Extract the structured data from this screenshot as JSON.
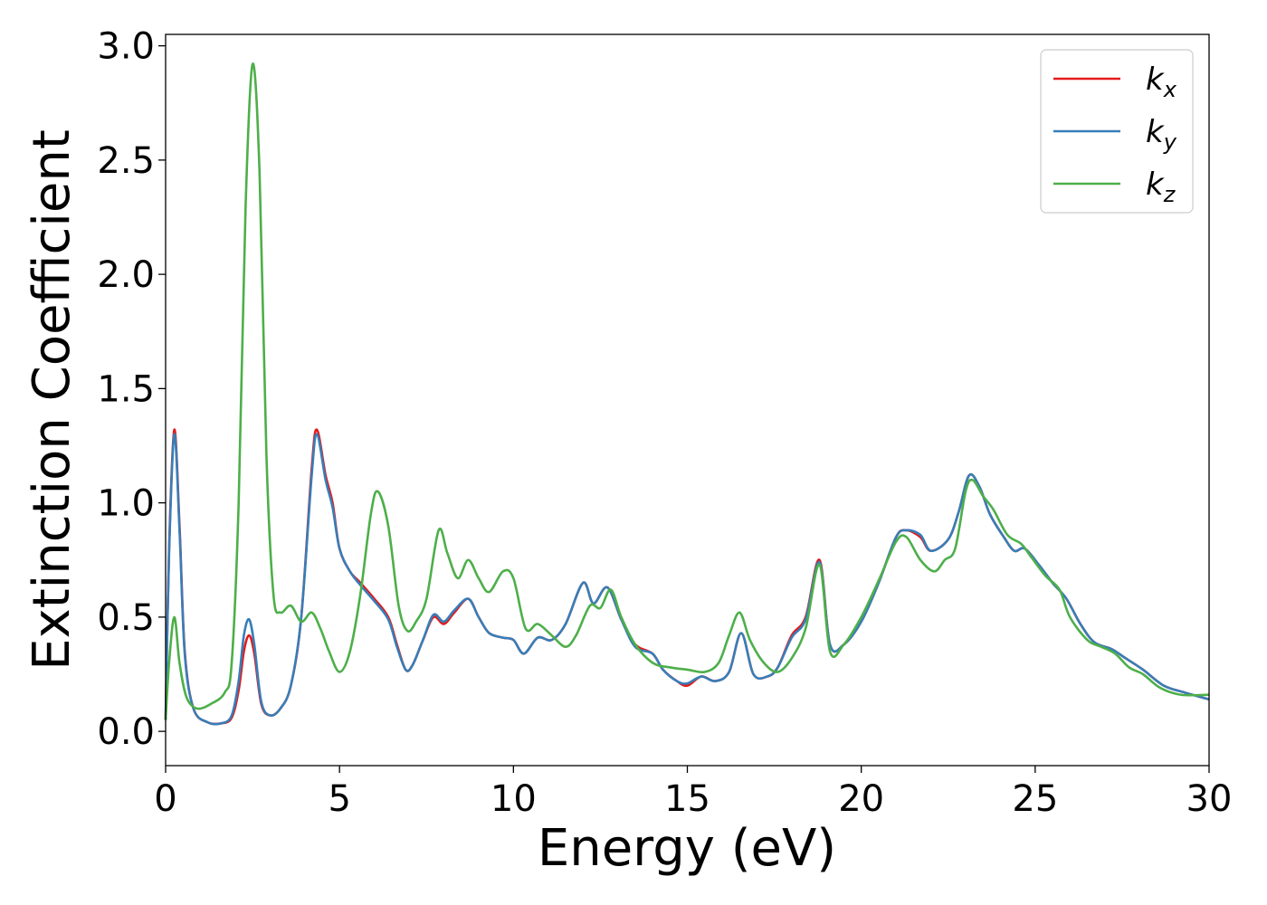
{
  "chart_data": {
    "type": "line",
    "title": "",
    "xlabel": "Energy (eV)",
    "ylabel": "Extinction Coefficient",
    "xlim": [
      0,
      30
    ],
    "ylim": [
      -0.15,
      3.05
    ],
    "xticks": [
      0,
      5,
      10,
      15,
      20,
      25,
      30
    ],
    "yticks": [
      0.0,
      0.5,
      1.0,
      1.5,
      2.0,
      2.5,
      3.0
    ],
    "xtick_labels": [
      "0",
      "5",
      "10",
      "15",
      "20",
      "25",
      "30"
    ],
    "ytick_labels": [
      "0.0",
      "0.5",
      "1.0",
      "1.5",
      "2.0",
      "2.5",
      "3.0"
    ],
    "grid": false,
    "legend_position": "top-right",
    "series": [
      {
        "name": "k_x",
        "legend_base": "k",
        "legend_sub": "x",
        "color": "#e41a1c",
        "points": [
          [
            0,
            0.05
          ],
          [
            0.1,
            0.8
          ],
          [
            0.25,
            1.32
          ],
          [
            0.4,
            0.9
          ],
          [
            0.55,
            0.35
          ],
          [
            0.8,
            0.1
          ],
          [
            1.2,
            0.04
          ],
          [
            1.6,
            0.035
          ],
          [
            1.9,
            0.06
          ],
          [
            2.1,
            0.18
          ],
          [
            2.25,
            0.35
          ],
          [
            2.4,
            0.42
          ],
          [
            2.55,
            0.34
          ],
          [
            2.75,
            0.12
          ],
          [
            3.0,
            0.07
          ],
          [
            3.3,
            0.1
          ],
          [
            3.6,
            0.2
          ],
          [
            3.9,
            0.5
          ],
          [
            4.2,
            1.15
          ],
          [
            4.35,
            1.32
          ],
          [
            4.6,
            1.12
          ],
          [
            4.8,
            1.0
          ],
          [
            5.0,
            0.8
          ],
          [
            5.3,
            0.7
          ],
          [
            5.6,
            0.65
          ],
          [
            6.0,
            0.58
          ],
          [
            6.4,
            0.5
          ],
          [
            6.65,
            0.38
          ],
          [
            6.9,
            0.27
          ],
          [
            7.1,
            0.29
          ],
          [
            7.4,
            0.4
          ],
          [
            7.7,
            0.5
          ],
          [
            8.0,
            0.47
          ],
          [
            8.3,
            0.52
          ],
          [
            8.7,
            0.58
          ],
          [
            9.0,
            0.5
          ],
          [
            9.3,
            0.43
          ],
          [
            9.7,
            0.41
          ],
          [
            10.0,
            0.4
          ],
          [
            10.3,
            0.34
          ],
          [
            10.7,
            0.41
          ],
          [
            11.1,
            0.4
          ],
          [
            11.5,
            0.47
          ],
          [
            12.0,
            0.65
          ],
          [
            12.3,
            0.56
          ],
          [
            12.7,
            0.63
          ],
          [
            13.1,
            0.49
          ],
          [
            13.5,
            0.38
          ],
          [
            14.0,
            0.34
          ],
          [
            14.3,
            0.27
          ],
          [
            14.7,
            0.22
          ],
          [
            15.0,
            0.2
          ],
          [
            15.4,
            0.24
          ],
          [
            15.8,
            0.22
          ],
          [
            16.2,
            0.26
          ],
          [
            16.55,
            0.43
          ],
          [
            16.9,
            0.25
          ],
          [
            17.3,
            0.24
          ],
          [
            17.6,
            0.28
          ],
          [
            18.0,
            0.42
          ],
          [
            18.4,
            0.5
          ],
          [
            18.8,
            0.75
          ],
          [
            19.1,
            0.38
          ],
          [
            19.5,
            0.38
          ],
          [
            20.0,
            0.48
          ],
          [
            20.5,
            0.65
          ],
          [
            21.0,
            0.85
          ],
          [
            21.3,
            0.88
          ],
          [
            21.7,
            0.85
          ],
          [
            22.0,
            0.79
          ],
          [
            22.5,
            0.84
          ],
          [
            22.8,
            0.96
          ],
          [
            23.1,
            1.12
          ],
          [
            23.4,
            1.07
          ],
          [
            23.7,
            0.95
          ],
          [
            24.1,
            0.85
          ],
          [
            24.4,
            0.79
          ],
          [
            24.7,
            0.8
          ],
          [
            25.1,
            0.73
          ],
          [
            25.5,
            0.65
          ],
          [
            25.9,
            0.58
          ],
          [
            26.3,
            0.47
          ],
          [
            26.7,
            0.39
          ],
          [
            27.2,
            0.36
          ],
          [
            27.6,
            0.32
          ],
          [
            28.1,
            0.27
          ],
          [
            28.7,
            0.2
          ],
          [
            29.3,
            0.17
          ],
          [
            30.0,
            0.14
          ]
        ]
      },
      {
        "name": "k_y",
        "legend_base": "k",
        "legend_sub": "y",
        "color": "#377eb8",
        "points": [
          [
            0,
            0.05
          ],
          [
            0.1,
            0.78
          ],
          [
            0.25,
            1.3
          ],
          [
            0.4,
            0.88
          ],
          [
            0.55,
            0.34
          ],
          [
            0.8,
            0.1
          ],
          [
            1.2,
            0.04
          ],
          [
            1.6,
            0.035
          ],
          [
            1.9,
            0.07
          ],
          [
            2.1,
            0.22
          ],
          [
            2.25,
            0.42
          ],
          [
            2.4,
            0.49
          ],
          [
            2.55,
            0.38
          ],
          [
            2.75,
            0.13
          ],
          [
            3.0,
            0.07
          ],
          [
            3.3,
            0.1
          ],
          [
            3.6,
            0.2
          ],
          [
            3.9,
            0.5
          ],
          [
            4.2,
            1.12
          ],
          [
            4.35,
            1.3
          ],
          [
            4.6,
            1.1
          ],
          [
            4.8,
            0.98
          ],
          [
            5.0,
            0.8
          ],
          [
            5.3,
            0.7
          ],
          [
            5.6,
            0.64
          ],
          [
            6.0,
            0.57
          ],
          [
            6.4,
            0.49
          ],
          [
            6.65,
            0.37
          ],
          [
            6.9,
            0.27
          ],
          [
            7.1,
            0.29
          ],
          [
            7.4,
            0.4
          ],
          [
            7.7,
            0.51
          ],
          [
            8.0,
            0.48
          ],
          [
            8.3,
            0.53
          ],
          [
            8.7,
            0.58
          ],
          [
            9.0,
            0.5
          ],
          [
            9.3,
            0.43
          ],
          [
            9.7,
            0.41
          ],
          [
            10.0,
            0.4
          ],
          [
            10.3,
            0.34
          ],
          [
            10.7,
            0.41
          ],
          [
            11.1,
            0.4
          ],
          [
            11.5,
            0.47
          ],
          [
            12.0,
            0.65
          ],
          [
            12.3,
            0.56
          ],
          [
            12.7,
            0.63
          ],
          [
            13.1,
            0.49
          ],
          [
            13.5,
            0.37
          ],
          [
            14.0,
            0.34
          ],
          [
            14.3,
            0.27
          ],
          [
            14.7,
            0.22
          ],
          [
            15.0,
            0.21
          ],
          [
            15.4,
            0.24
          ],
          [
            15.8,
            0.22
          ],
          [
            16.2,
            0.26
          ],
          [
            16.55,
            0.43
          ],
          [
            16.9,
            0.25
          ],
          [
            17.3,
            0.24
          ],
          [
            17.6,
            0.28
          ],
          [
            18.0,
            0.41
          ],
          [
            18.4,
            0.49
          ],
          [
            18.8,
            0.74
          ],
          [
            19.1,
            0.38
          ],
          [
            19.5,
            0.38
          ],
          [
            20.0,
            0.48
          ],
          [
            20.5,
            0.65
          ],
          [
            21.0,
            0.85
          ],
          [
            21.3,
            0.88
          ],
          [
            21.7,
            0.86
          ],
          [
            22.0,
            0.79
          ],
          [
            22.5,
            0.84
          ],
          [
            22.8,
            0.96
          ],
          [
            23.1,
            1.12
          ],
          [
            23.4,
            1.07
          ],
          [
            23.7,
            0.95
          ],
          [
            24.1,
            0.85
          ],
          [
            24.4,
            0.79
          ],
          [
            24.7,
            0.8
          ],
          [
            25.1,
            0.73
          ],
          [
            25.5,
            0.65
          ],
          [
            25.9,
            0.58
          ],
          [
            26.3,
            0.47
          ],
          [
            26.7,
            0.39
          ],
          [
            27.2,
            0.36
          ],
          [
            27.6,
            0.32
          ],
          [
            28.1,
            0.27
          ],
          [
            28.7,
            0.2
          ],
          [
            29.3,
            0.17
          ],
          [
            30.0,
            0.14
          ]
        ]
      },
      {
        "name": "k_z",
        "legend_base": "k",
        "legend_sub": "z",
        "color": "#4daf4a",
        "points": [
          [
            0,
            0.05
          ],
          [
            0.1,
            0.3
          ],
          [
            0.25,
            0.5
          ],
          [
            0.4,
            0.3
          ],
          [
            0.6,
            0.15
          ],
          [
            0.9,
            0.1
          ],
          [
            1.3,
            0.12
          ],
          [
            1.7,
            0.17
          ],
          [
            1.9,
            0.3
          ],
          [
            2.1,
            1.0
          ],
          [
            2.3,
            2.3
          ],
          [
            2.5,
            2.92
          ],
          [
            2.7,
            2.45
          ],
          [
            2.9,
            1.2
          ],
          [
            3.1,
            0.6
          ],
          [
            3.3,
            0.52
          ],
          [
            3.6,
            0.55
          ],
          [
            3.9,
            0.48
          ],
          [
            4.2,
            0.52
          ],
          [
            4.45,
            0.45
          ],
          [
            4.7,
            0.35
          ],
          [
            5.0,
            0.26
          ],
          [
            5.3,
            0.35
          ],
          [
            5.6,
            0.6
          ],
          [
            5.9,
            0.95
          ],
          [
            6.1,
            1.05
          ],
          [
            6.4,
            0.9
          ],
          [
            6.7,
            0.55
          ],
          [
            6.95,
            0.44
          ],
          [
            7.2,
            0.48
          ],
          [
            7.5,
            0.58
          ],
          [
            7.85,
            0.88
          ],
          [
            8.1,
            0.78
          ],
          [
            8.4,
            0.67
          ],
          [
            8.7,
            0.75
          ],
          [
            9.0,
            0.67
          ],
          [
            9.3,
            0.61
          ],
          [
            9.7,
            0.7
          ],
          [
            10.0,
            0.67
          ],
          [
            10.35,
            0.45
          ],
          [
            10.7,
            0.47
          ],
          [
            11.1,
            0.42
          ],
          [
            11.5,
            0.37
          ],
          [
            11.8,
            0.42
          ],
          [
            12.2,
            0.55
          ],
          [
            12.5,
            0.54
          ],
          [
            12.8,
            0.62
          ],
          [
            13.1,
            0.5
          ],
          [
            13.5,
            0.38
          ],
          [
            14.0,
            0.3
          ],
          [
            14.5,
            0.28
          ],
          [
            15.0,
            0.27
          ],
          [
            15.5,
            0.26
          ],
          [
            15.9,
            0.3
          ],
          [
            16.2,
            0.42
          ],
          [
            16.5,
            0.52
          ],
          [
            16.8,
            0.4
          ],
          [
            17.2,
            0.3
          ],
          [
            17.6,
            0.26
          ],
          [
            18.0,
            0.32
          ],
          [
            18.4,
            0.45
          ],
          [
            18.8,
            0.73
          ],
          [
            19.1,
            0.35
          ],
          [
            19.5,
            0.38
          ],
          [
            20.0,
            0.5
          ],
          [
            20.5,
            0.66
          ],
          [
            21.0,
            0.83
          ],
          [
            21.3,
            0.85
          ],
          [
            21.7,
            0.75
          ],
          [
            22.1,
            0.7
          ],
          [
            22.4,
            0.75
          ],
          [
            22.7,
            0.8
          ],
          [
            23.0,
            1.05
          ],
          [
            23.2,
            1.1
          ],
          [
            23.5,
            1.03
          ],
          [
            23.8,
            0.97
          ],
          [
            24.2,
            0.86
          ],
          [
            24.6,
            0.82
          ],
          [
            24.9,
            0.76
          ],
          [
            25.3,
            0.68
          ],
          [
            25.7,
            0.62
          ],
          [
            26.0,
            0.5
          ],
          [
            26.5,
            0.4
          ],
          [
            26.9,
            0.37
          ],
          [
            27.3,
            0.34
          ],
          [
            27.7,
            0.28
          ],
          [
            28.1,
            0.25
          ],
          [
            28.6,
            0.19
          ],
          [
            29.2,
            0.16
          ],
          [
            30.0,
            0.16
          ]
        ]
      }
    ]
  }
}
